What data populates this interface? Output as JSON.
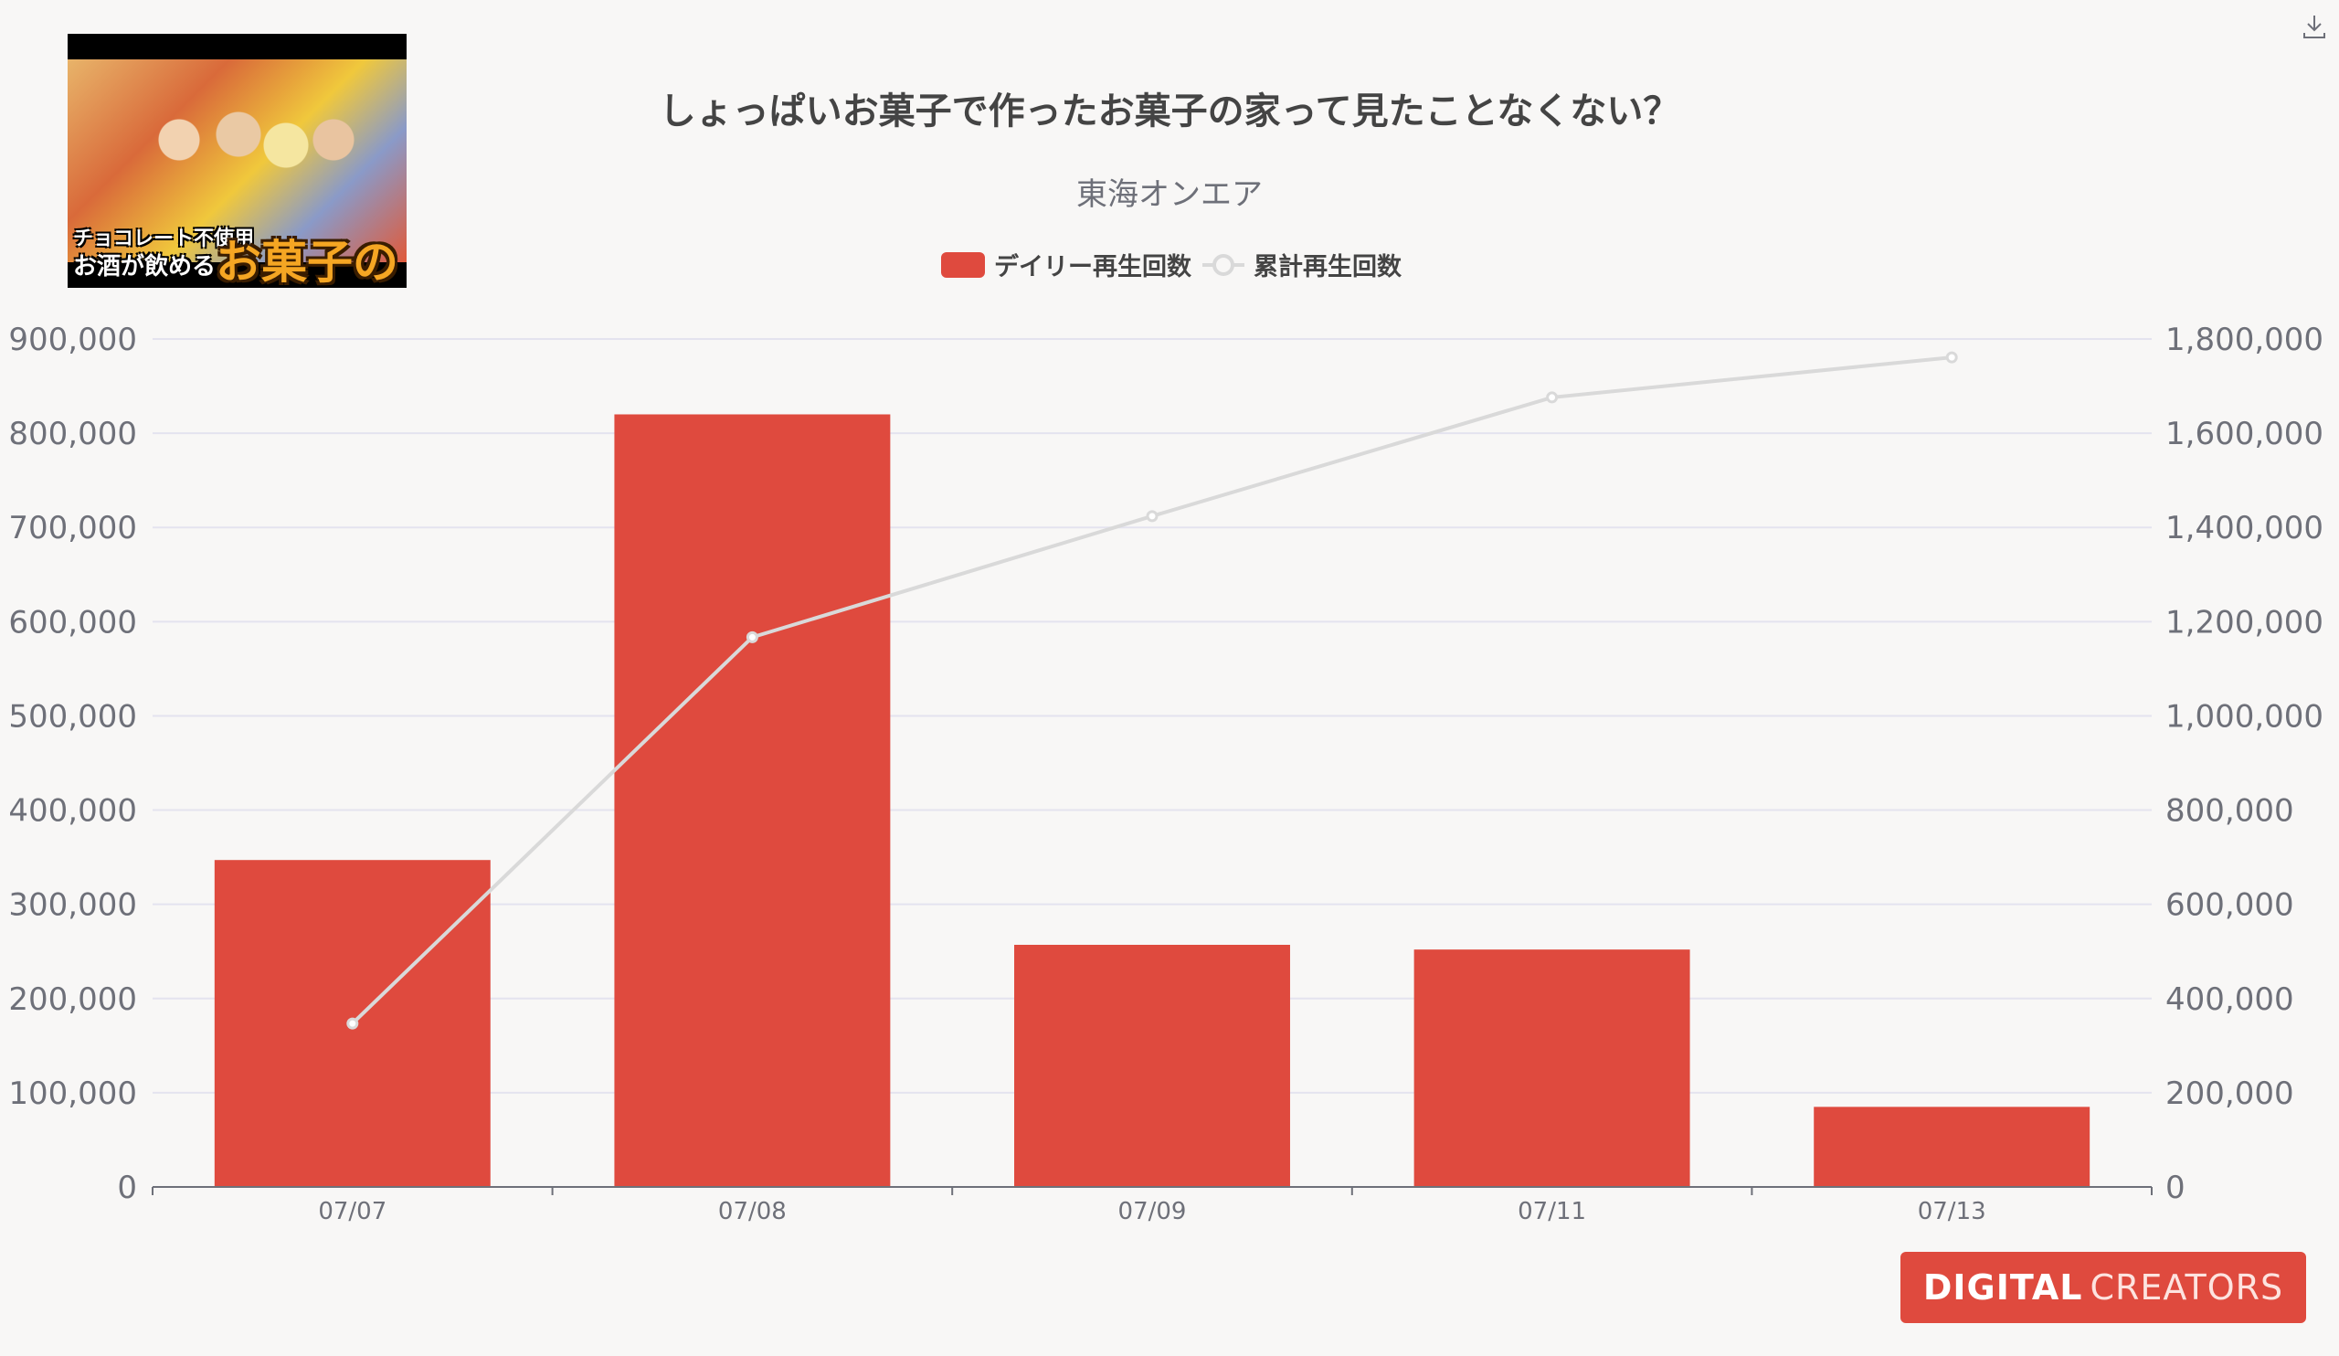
{
  "thumbnail": {
    "caption_top": "チョコレート不使用",
    "caption_mid": "お酒が飲める",
    "caption_big": "お菓子の家"
  },
  "logo": {
    "bold": "DIGITAL",
    "light": "CREATORS"
  },
  "colors": {
    "bar": "#df4a3e",
    "line": "#d9d9d9",
    "grid": "#e4e3ef",
    "axis": "#6e7079",
    "text": "#444444"
  },
  "chart_data": {
    "type": "bar",
    "title": "しょっぱいお菓子で作ったお菓子の家って見たことなくない？",
    "subtitle": "東海オンエア",
    "categories": [
      "07/07",
      "07/08",
      "07/09",
      "07/11",
      "07/13"
    ],
    "series": [
      {
        "name": "デイリー再生回数",
        "type": "bar",
        "axis": "left",
        "values": [
          347000,
          820000,
          257000,
          252000,
          85000
        ]
      },
      {
        "name": "累計再生回数",
        "type": "line",
        "axis": "right",
        "values": [
          347000,
          1167000,
          1424000,
          1676000,
          1761000
        ]
      }
    ],
    "y_left": {
      "min": 0,
      "max": 900000,
      "ticks": [
        "0",
        "100,000",
        "200,000",
        "300,000",
        "400,000",
        "500,000",
        "600,000",
        "700,000",
        "800,000",
        "900,000"
      ]
    },
    "y_right": {
      "min": 0,
      "max": 1800000,
      "ticks": [
        "0",
        "200,000",
        "400,000",
        "600,000",
        "800,000",
        "1,000,000",
        "1,200,000",
        "1,400,000",
        "1,600,000",
        "1,800,000"
      ]
    },
    "legend_position": "top-center",
    "grid": true
  }
}
